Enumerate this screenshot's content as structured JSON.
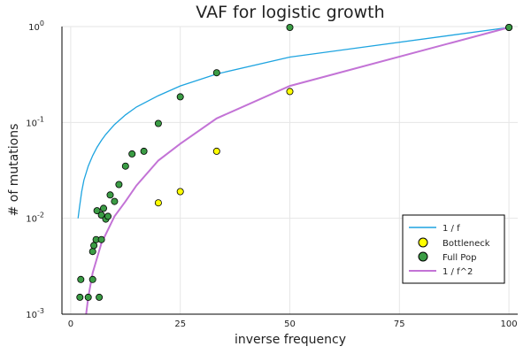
{
  "chart_data": {
    "type": "scatter",
    "title": "VAF for logistic growth",
    "xlabel": "inverse frequency",
    "ylabel": "# of mutations",
    "xlim": [
      -2,
      102
    ],
    "ylim": [
      0.001,
      1
    ],
    "yscale": "log",
    "grid": true,
    "legend_position": "bottom-right",
    "x_ticks": [
      {
        "value": 0,
        "label": "0"
      },
      {
        "value": 25,
        "label": "25"
      },
      {
        "value": 50,
        "label": "50"
      },
      {
        "value": 75,
        "label": "75"
      },
      {
        "value": 100,
        "label": "100"
      }
    ],
    "y_ticks": [
      {
        "value": 0.001,
        "base": "10",
        "exp": "-3"
      },
      {
        "value": 0.01,
        "base": "10",
        "exp": "-2"
      },
      {
        "value": 0.1,
        "base": "10",
        "exp": "-1"
      },
      {
        "value": 1,
        "base": "10",
        "exp": "0"
      }
    ],
    "series": [
      {
        "name": "1 / f",
        "kind": "line",
        "color": "#1ea4e0",
        "x": [
          1.67,
          2,
          2.5,
          3,
          4,
          5,
          6,
          7,
          8,
          10,
          12.5,
          15,
          20,
          25,
          33.3,
          50,
          100
        ],
        "y": [
          0.01,
          0.013,
          0.019,
          0.025,
          0.035,
          0.045,
          0.055,
          0.065,
          0.075,
          0.095,
          0.12,
          0.145,
          0.19,
          0.24,
          0.32,
          0.48,
          0.98
        ]
      },
      {
        "name": "Bottleneck",
        "kind": "scatter",
        "color": "#ffff00",
        "x": [
          20,
          25,
          33.3,
          50,
          100
        ],
        "y": [
          0.0145,
          0.019,
          0.05,
          0.21,
          0.98
        ]
      },
      {
        "name": "Full Pop",
        "kind": "scatter",
        "color": "#3b9c45",
        "x": [
          2.1,
          2.3,
          4,
          5,
          5,
          5.3,
          5.8,
          6,
          6.5,
          7,
          7,
          7.5,
          8,
          8.5,
          9,
          10,
          11,
          12.5,
          14,
          16.7,
          20,
          25,
          33.3,
          50,
          100
        ],
        "y": [
          0.0015,
          0.0023,
          0.0015,
          0.0023,
          0.0045,
          0.0052,
          0.006,
          0.012,
          0.0015,
          0.006,
          0.0108,
          0.0127,
          0.0098,
          0.0105,
          0.0175,
          0.015,
          0.0225,
          0.035,
          0.047,
          0.05,
          0.0975,
          0.185,
          0.33,
          0.98,
          0.98
        ]
      },
      {
        "name": "1 / f^2",
        "kind": "line",
        "color": "#c373d6",
        "x": [
          3.5,
          4,
          5,
          7,
          10,
          12.5,
          15,
          20,
          25,
          33.3,
          50,
          100
        ],
        "y": [
          0.00098,
          0.0015,
          0.0027,
          0.0055,
          0.0105,
          0.015,
          0.022,
          0.04,
          0.06,
          0.11,
          0.24,
          0.98
        ]
      }
    ]
  }
}
